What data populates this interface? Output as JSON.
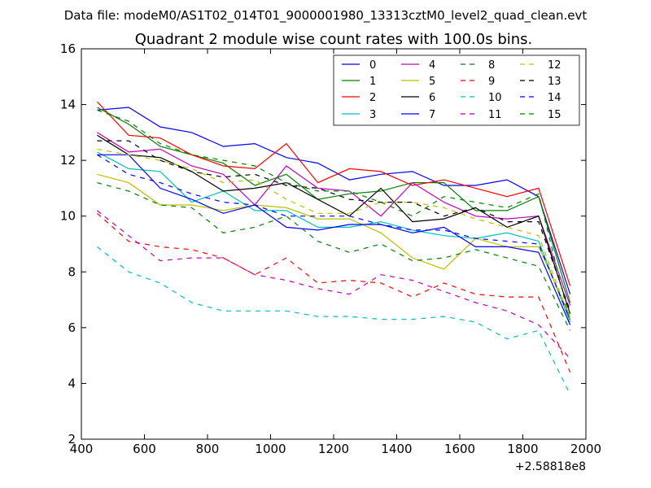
{
  "chart_data": {
    "type": "line",
    "suptitle": "Data file: modeM0/AS1T02_014T01_9000001980_13313cztM0_level2_quad_clean.evt",
    "title": "Quadrant 2 module wise count rates with 100.0s bins.",
    "xlabel": "",
    "ylabel": "",
    "x_offset_label": "+2.58818e8",
    "xlim": [
      400,
      2000
    ],
    "ylim": [
      2,
      16
    ],
    "xticks": [
      "400",
      "600",
      "800",
      "1000",
      "1200",
      "1400",
      "1600",
      "1800",
      "2000"
    ],
    "yticks": [
      "2",
      "4",
      "6",
      "8",
      "10",
      "12",
      "14",
      "16"
    ],
    "grid": false,
    "legend_position": "top-right",
    "legend_columns": 4,
    "x": [
      450,
      550,
      650,
      750,
      850,
      950,
      1050,
      1150,
      1250,
      1350,
      1450,
      1550,
      1650,
      1750,
      1850,
      1950
    ],
    "series": [
      {
        "name": "0",
        "color": "#0000ff",
        "dash": "solid",
        "values": [
          13.8,
          13.9,
          13.2,
          13.0,
          12.5,
          12.6,
          12.1,
          11.9,
          11.3,
          11.5,
          11.6,
          11.1,
          11.1,
          11.3,
          10.7,
          7.2
        ]
      },
      {
        "name": "1",
        "color": "#008000",
        "dash": "solid",
        "values": [
          13.9,
          13.3,
          12.5,
          12.2,
          11.9,
          11.1,
          11.5,
          10.6,
          10.8,
          10.9,
          11.2,
          11.2,
          10.2,
          10.2,
          10.7,
          6.9
        ]
      },
      {
        "name": "2",
        "color": "#ff0000",
        "dash": "solid",
        "values": [
          14.1,
          12.9,
          12.8,
          12.2,
          11.8,
          11.7,
          12.6,
          11.2,
          11.7,
          11.6,
          11.1,
          11.3,
          11.0,
          10.7,
          11.0,
          7.5
        ]
      },
      {
        "name": "3",
        "color": "#00bfbf",
        "dash": "solid",
        "values": [
          12.3,
          11.7,
          11.6,
          10.5,
          10.9,
          10.2,
          10.2,
          9.6,
          9.6,
          9.8,
          9.5,
          9.3,
          9.2,
          9.4,
          9.1,
          6.2
        ]
      },
      {
        "name": "4",
        "color": "#bf00bf",
        "dash": "solid",
        "values": [
          13.0,
          12.3,
          12.4,
          11.8,
          11.5,
          10.4,
          11.8,
          11.0,
          10.9,
          10.0,
          11.2,
          10.5,
          10.0,
          9.9,
          10.0,
          6.8
        ]
      },
      {
        "name": "5",
        "color": "#bfbf00",
        "dash": "solid",
        "values": [
          11.5,
          11.2,
          10.4,
          10.4,
          10.2,
          10.4,
          10.3,
          9.9,
          9.9,
          9.4,
          8.5,
          8.1,
          9.2,
          8.9,
          8.9,
          6.4
        ]
      },
      {
        "name": "6",
        "color": "#000000",
        "dash": "solid",
        "values": [
          12.9,
          12.2,
          12.1,
          11.6,
          10.9,
          11.0,
          11.2,
          10.6,
          10.0,
          11.0,
          9.8,
          9.9,
          10.3,
          9.6,
          10.0,
          6.5
        ]
      },
      {
        "name": "7",
        "color": "#0000ff",
        "dash": "solid",
        "values": [
          12.2,
          12.2,
          11.0,
          10.6,
          10.1,
          10.4,
          9.6,
          9.5,
          9.7,
          9.7,
          9.4,
          9.6,
          8.9,
          8.9,
          8.7,
          6.1
        ]
      },
      {
        "name": "8",
        "color": "#008000",
        "dash": "dashed",
        "values": [
          11.2,
          10.9,
          10.4,
          10.3,
          9.4,
          9.6,
          10.0,
          9.1,
          8.7,
          9.0,
          8.4,
          8.5,
          8.8,
          8.5,
          8.2,
          5.9
        ]
      },
      {
        "name": "9",
        "color": "#ff0000",
        "dash": "dashed",
        "values": [
          10.1,
          9.1,
          8.9,
          8.8,
          8.5,
          7.9,
          8.5,
          7.6,
          7.7,
          7.6,
          7.1,
          7.6,
          7.2,
          7.1,
          7.1,
          4.4
        ]
      },
      {
        "name": "10",
        "color": "#00bfbf",
        "dash": "dashed",
        "values": [
          8.9,
          8.0,
          7.6,
          6.9,
          6.6,
          6.6,
          6.6,
          6.4,
          6.4,
          6.3,
          6.3,
          6.4,
          6.2,
          5.6,
          5.9,
          3.6
        ]
      },
      {
        "name": "11",
        "color": "#bf00bf",
        "dash": "dashed",
        "values": [
          10.2,
          9.3,
          8.4,
          8.5,
          8.5,
          7.9,
          7.7,
          7.4,
          7.2,
          7.9,
          7.7,
          7.3,
          6.9,
          6.6,
          6.1,
          4.9
        ]
      },
      {
        "name": "12",
        "color": "#bfbf00",
        "dash": "dashed",
        "values": [
          12.4,
          12.2,
          12.0,
          11.7,
          11.2,
          11.3,
          10.6,
          10.1,
          10.1,
          10.5,
          10.5,
          10.3,
          9.9,
          9.6,
          9.3,
          6.3
        ]
      },
      {
        "name": "13",
        "color": "#000000",
        "dash": "dashed",
        "values": [
          12.7,
          12.7,
          12.0,
          11.6,
          11.4,
          11.5,
          11.1,
          11.0,
          10.6,
          10.5,
          10.5,
          10.0,
          10.3,
          9.8,
          9.8,
          6.6
        ]
      },
      {
        "name": "14",
        "color": "#0000ff",
        "dash": "dashed",
        "values": [
          12.2,
          11.5,
          11.2,
          10.8,
          10.5,
          10.4,
          10.0,
          10.0,
          10.0,
          9.7,
          9.5,
          9.5,
          9.2,
          9.1,
          9.0,
          6.3
        ]
      },
      {
        "name": "15",
        "color": "#008000",
        "dash": "dashed",
        "values": [
          13.8,
          13.4,
          12.6,
          12.2,
          12.0,
          11.8,
          11.2,
          10.9,
          10.9,
          10.5,
          10.0,
          10.7,
          10.5,
          10.3,
          10.8,
          6.2
        ]
      }
    ]
  }
}
